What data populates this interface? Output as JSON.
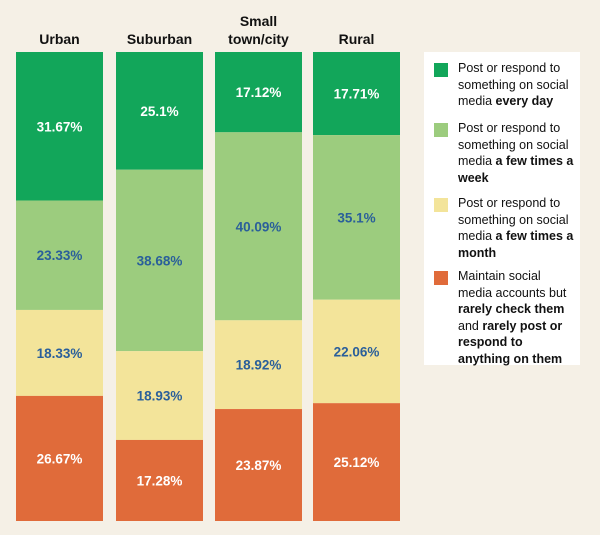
{
  "chart_data": {
    "type": "bar",
    "stacked": true,
    "normalized": true,
    "categories": [
      "Urban",
      "Suburban",
      "Small town/city",
      "Rural"
    ],
    "category_lines": [
      [
        "Urban"
      ],
      [
        "Suburban"
      ],
      [
        "Small",
        "town/city"
      ],
      [
        "Rural"
      ]
    ],
    "ylim": [
      0,
      100
    ],
    "series": [
      {
        "name": "Post or respond to something on social media every day",
        "color": "#12a65a",
        "label_color": "#ffffff",
        "values": [
          31.67,
          25.1,
          17.12,
          17.71
        ],
        "labels": [
          "31.67%",
          "25.1%",
          "17.12%",
          "17.71%"
        ]
      },
      {
        "name": "Post or respond to something on social media a few times a week",
        "color": "#9ccc7e",
        "label_color": "#2a5f9a",
        "values": [
          23.33,
          38.68,
          40.09,
          35.1
        ],
        "labels": [
          "23.33%",
          "38.68%",
          "40.09%",
          "35.1%"
        ]
      },
      {
        "name": "Post or respond to something on social media a few times a month",
        "color": "#f3e49a",
        "label_color": "#2a5f9a",
        "values": [
          18.33,
          18.93,
          18.92,
          22.06
        ],
        "labels": [
          "18.33%",
          "18.93%",
          "18.92%",
          "22.06%"
        ]
      },
      {
        "name": "Maintain social media accounts but rarely check them and rarely post or respond to anything on them",
        "color": "#e06b3a",
        "label_color": "#ffffff",
        "values": [
          26.67,
          17.28,
          23.87,
          25.12
        ],
        "labels": [
          "26.67%",
          "17.28%",
          "23.87%",
          "25.12%"
        ]
      }
    ]
  },
  "legend": [
    {
      "plain": "Post or respond to something on social media ",
      "bold": "every day",
      "plain2": "",
      "bold2": ""
    },
    {
      "plain": "Post or respond to something on social media ",
      "bold": "a few times a week",
      "plain2": "",
      "bold2": ""
    },
    {
      "plain": "Post or respond to something on social media ",
      "bold": "a few times a month",
      "plain2": "",
      "bold2": ""
    },
    {
      "plain": "Maintain social media accounts but ",
      "bold": "rarely check them",
      "plain2": " and ",
      "bold2": "rarely post or respond to anything on them"
    }
  ]
}
